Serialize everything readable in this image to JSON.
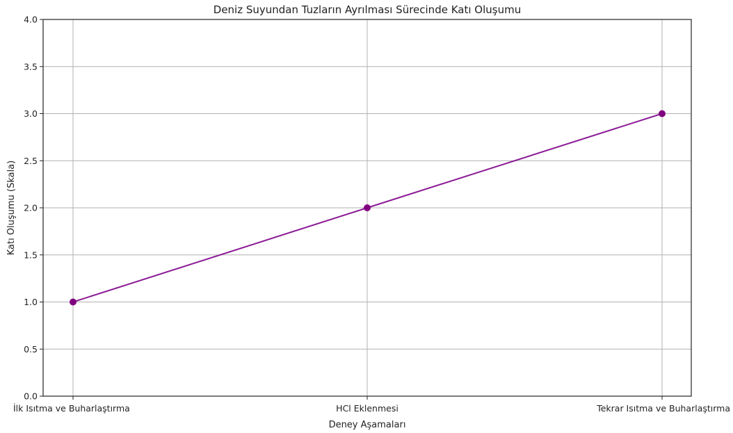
{
  "chart_data": {
    "type": "line",
    "title": "Deniz Suyundan Tuzların Ayrılması Sürecinde Katı Oluşumu",
    "xlabel": "Deney Aşamaları",
    "ylabel": "Katı Oluşumu (Skala)",
    "categories": [
      "İlk Isıtma ve Buharlaştırma",
      "HCl Eklenmesi",
      "Tekrar Isıtma ve Buharlaştırma"
    ],
    "values": [
      1.0,
      2.0,
      3.0
    ],
    "ylim": [
      0,
      4
    ],
    "yticks": [
      "0.0",
      "0.5",
      "1.0",
      "1.5",
      "2.0",
      "2.5",
      "3.0",
      "3.5",
      "4.0"
    ],
    "grid": true,
    "line_color": "#8b1a96",
    "marker_color": "#800080"
  }
}
